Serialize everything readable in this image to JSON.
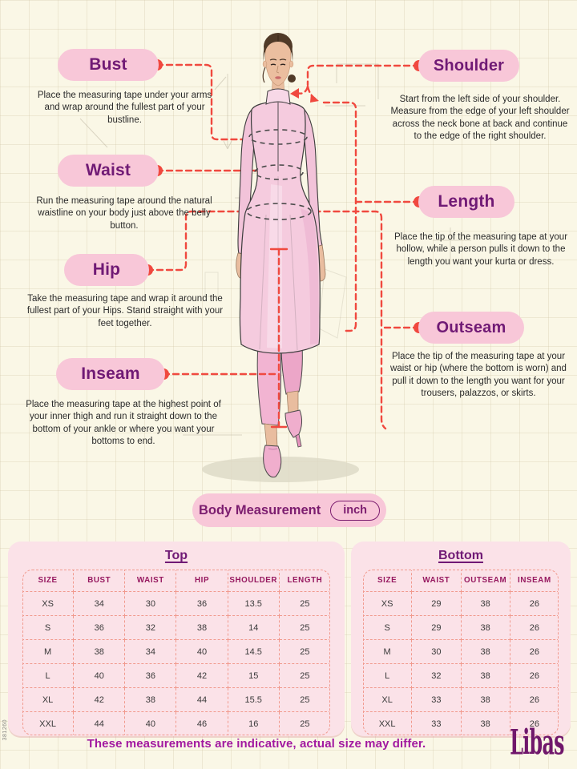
{
  "callouts": {
    "bust": {
      "label": "Bust",
      "description": "Place the measuring tape under your arms and wrap around the fullest part of your bustline."
    },
    "waist": {
      "label": "Waist",
      "description": "Run the measuring tape around the natural waistline on your body just above the belly button."
    },
    "hip": {
      "label": "Hip",
      "description": "Take the measuring tape and wrap it around the fullest part of your Hips. Stand straight with your feet together."
    },
    "inseam": {
      "label": "Inseam",
      "description": "Place the measuring tape at the highest point of your inner thigh and run it straight down to the bottom of your ankle or where you want your bottoms to end."
    },
    "shoulder": {
      "label": "Shoulder",
      "description": "Start from the left side of your shoulder. Measure from the edge of your left shoulder across the neck bone at back and continue to the edge of the right shoulder."
    },
    "length": {
      "label": "Length",
      "description": "Place the tip of the measuring tape at your hollow, while a person pulls it down to the length you want your kurta or dress."
    },
    "outseam": {
      "label": "Outseam",
      "description": "Place the tip of the measuring tape at your waist or hip (where the bottom is worn) and pull it down to the length you want for your trousers, palazzos, or skirts."
    }
  },
  "unit_selector": {
    "label": "Body Measurement",
    "unit": "inch"
  },
  "tables": {
    "top": {
      "title": "Top",
      "headers": [
        "SIZE",
        "BUST",
        "WAIST",
        "HIP",
        "SHOULDER",
        "LENGTH"
      ],
      "rows": [
        [
          "XS",
          "34",
          "30",
          "36",
          "13.5",
          "25"
        ],
        [
          "S",
          "36",
          "32",
          "38",
          "14",
          "25"
        ],
        [
          "M",
          "38",
          "34",
          "40",
          "14.5",
          "25"
        ],
        [
          "L",
          "40",
          "36",
          "42",
          "15",
          "25"
        ],
        [
          "XL",
          "42",
          "38",
          "44",
          "15.5",
          "25"
        ],
        [
          "XXL",
          "44",
          "40",
          "46",
          "16",
          "25"
        ]
      ]
    },
    "bottom": {
      "title": "Bottom",
      "headers": [
        "SIZE",
        "WAIST",
        "OUTSEAM",
        "INSEAM"
      ],
      "rows": [
        [
          "XS",
          "29",
          "38",
          "26"
        ],
        [
          "S",
          "29",
          "38",
          "26"
        ],
        [
          "M",
          "30",
          "38",
          "26"
        ],
        [
          "L",
          "32",
          "38",
          "26"
        ],
        [
          "XL",
          "33",
          "38",
          "26"
        ],
        [
          "XXL",
          "33",
          "38",
          "26"
        ]
      ]
    }
  },
  "footer": {
    "note": "These measurements are indicative, actual size may differ.",
    "brand": "Libas",
    "side_code": "381260"
  },
  "colors": {
    "background": "#FAF7E6",
    "pill_pink": "#F8C7D8",
    "label_purple": "#701A75",
    "connector_red": "#F0493F",
    "table_box_pink": "#FBE2E8",
    "table_border_salmon": "#F19A8E",
    "table_header_magenta": "#96185F",
    "footer_magenta": "#A219A0",
    "brand_purple": "#70176B"
  }
}
